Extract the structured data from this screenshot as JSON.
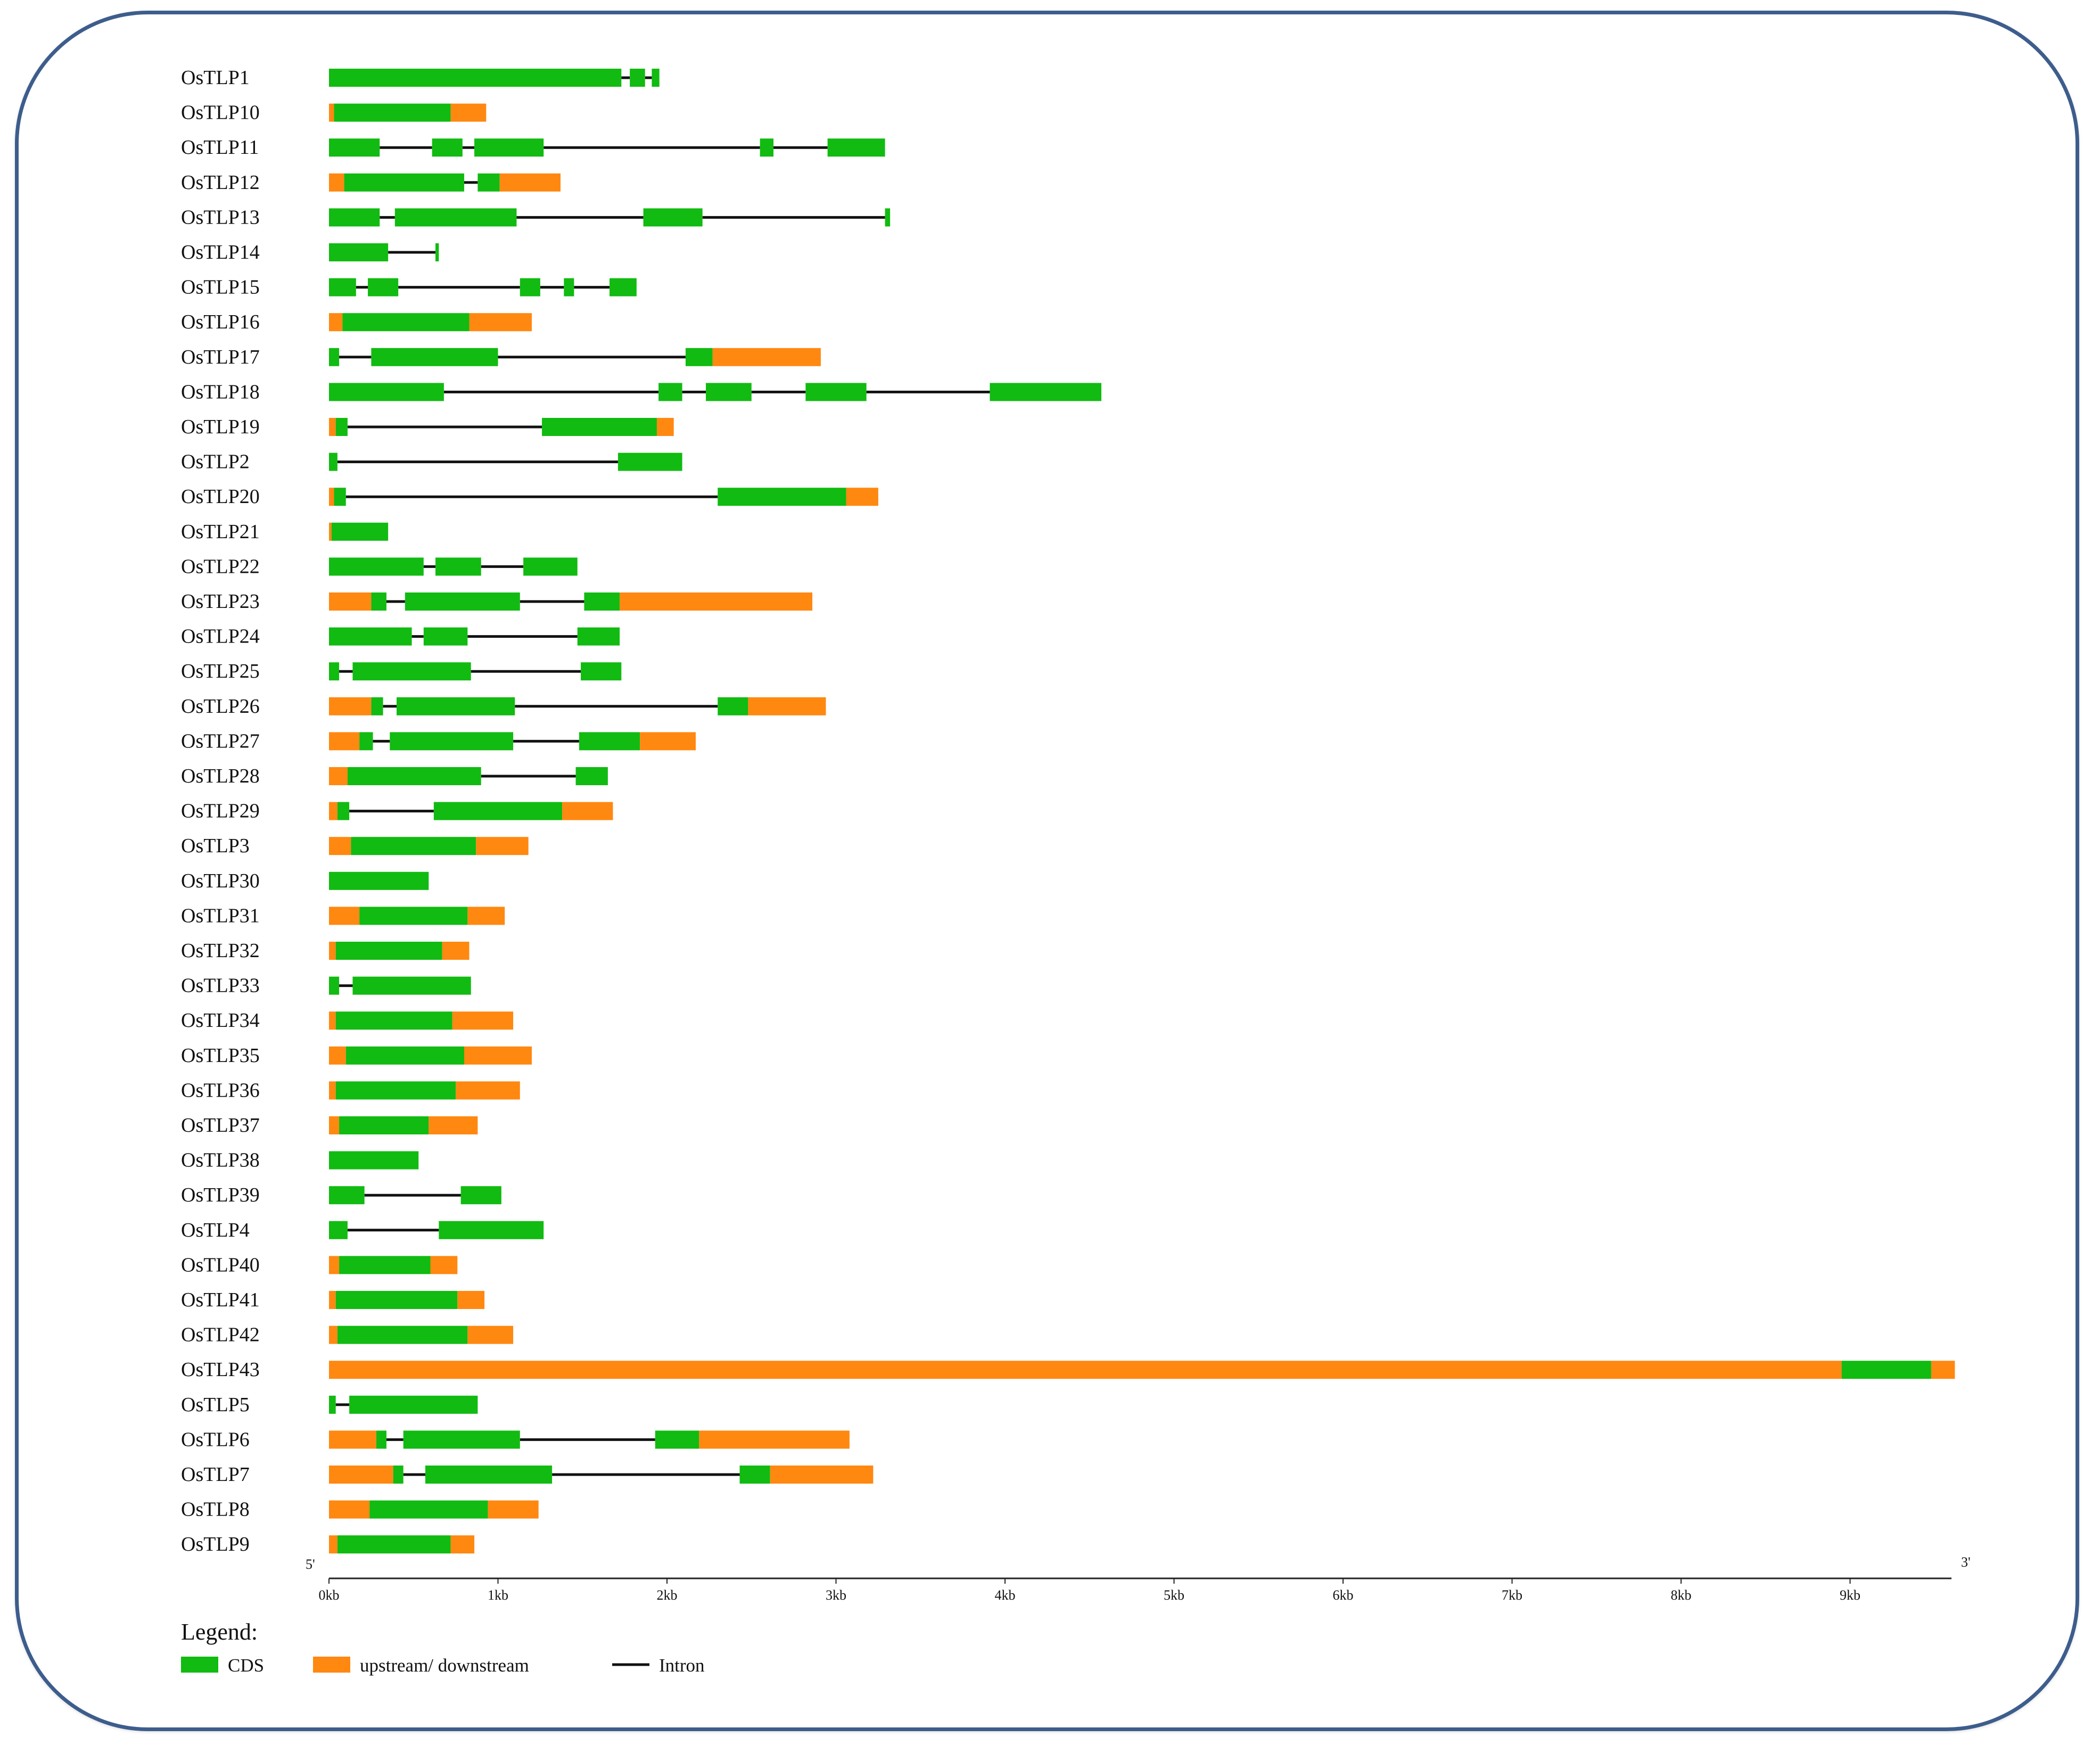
{
  "figure": {
    "title": "",
    "end_5_label": "5'",
    "end_3_label": "3'",
    "colors": {
      "cds": "#11bb11",
      "utr": "#ff8811",
      "intron": "#111111",
      "frame": "#3d5d8c"
    }
  },
  "chart_data": {
    "type": "gene-structure",
    "units": "bp",
    "x_range": [
      0,
      9600
    ],
    "axis": {
      "ticks": [
        {
          "value": 0,
          "label": "0kb"
        },
        {
          "value": 1000,
          "label": "1kb"
        },
        {
          "value": 2000,
          "label": "2kb"
        },
        {
          "value": 3000,
          "label": "3kb"
        },
        {
          "value": 4000,
          "label": "4kb"
        },
        {
          "value": 5000,
          "label": "5kb"
        },
        {
          "value": 6000,
          "label": "6kb"
        },
        {
          "value": 7000,
          "label": "7kb"
        },
        {
          "value": 8000,
          "label": "8kb"
        },
        {
          "value": 9000,
          "label": "9kb"
        }
      ]
    },
    "genes": [
      {
        "name": "OsTLP1",
        "features": [
          [
            "C",
            0,
            1730
          ],
          [
            "C",
            1780,
            1870
          ],
          [
            "C",
            1910,
            1955
          ]
        ]
      },
      {
        "name": "OsTLP10",
        "features": [
          [
            "U",
            0,
            30
          ],
          [
            "C",
            30,
            720
          ],
          [
            "U",
            720,
            930
          ]
        ]
      },
      {
        "name": "OsTLP11",
        "features": [
          [
            "C",
            0,
            300
          ],
          [
            "C",
            610,
            790
          ],
          [
            "C",
            860,
            1270
          ],
          [
            "C",
            2550,
            2630
          ],
          [
            "C",
            2950,
            3290
          ]
        ]
      },
      {
        "name": "OsTLP12",
        "features": [
          [
            "U",
            0,
            90
          ],
          [
            "C",
            90,
            800
          ],
          [
            "C",
            880,
            1010
          ],
          [
            "U",
            1010,
            1370
          ]
        ]
      },
      {
        "name": "OsTLP13",
        "features": [
          [
            "C",
            0,
            300
          ],
          [
            "C",
            390,
            1110
          ],
          [
            "C",
            1860,
            2210
          ],
          [
            "C",
            3290,
            3320
          ]
        ]
      },
      {
        "name": "OsTLP14",
        "features": [
          [
            "C",
            0,
            350
          ],
          [
            "C",
            630,
            650
          ]
        ]
      },
      {
        "name": "OsTLP15",
        "features": [
          [
            "C",
            0,
            160
          ],
          [
            "C",
            230,
            410
          ],
          [
            "C",
            1130,
            1250
          ],
          [
            "C",
            1390,
            1450
          ],
          [
            "C",
            1660,
            1820
          ]
        ]
      },
      {
        "name": "OsTLP16",
        "features": [
          [
            "U",
            0,
            80
          ],
          [
            "C",
            80,
            830
          ],
          [
            "U",
            830,
            1200
          ]
        ]
      },
      {
        "name": "OsTLP17",
        "features": [
          [
            "C",
            0,
            60
          ],
          [
            "C",
            250,
            1000
          ],
          [
            "C",
            2110,
            2270
          ],
          [
            "U",
            2270,
            2910
          ]
        ]
      },
      {
        "name": "OsTLP18",
        "features": [
          [
            "C",
            0,
            680
          ],
          [
            "C",
            1950,
            2090
          ],
          [
            "C",
            2230,
            2500
          ],
          [
            "C",
            2820,
            3180
          ],
          [
            "C",
            3910,
            4570
          ]
        ]
      },
      {
        "name": "OsTLP19",
        "features": [
          [
            "U",
            0,
            40
          ],
          [
            "C",
            40,
            110
          ],
          [
            "C",
            1260,
            1940
          ],
          [
            "U",
            1940,
            2040
          ]
        ]
      },
      {
        "name": "OsTLP2",
        "features": [
          [
            "C",
            0,
            50
          ],
          [
            "C",
            1710,
            2090
          ]
        ]
      },
      {
        "name": "OsTLP20",
        "features": [
          [
            "U",
            0,
            30
          ],
          [
            "C",
            30,
            100
          ],
          [
            "C",
            2300,
            3060
          ],
          [
            "U",
            3060,
            3250
          ]
        ]
      },
      {
        "name": "OsTLP21",
        "features": [
          [
            "U",
            0,
            15
          ],
          [
            "C",
            15,
            350
          ]
        ]
      },
      {
        "name": "OsTLP22",
        "features": [
          [
            "C",
            0,
            560
          ],
          [
            "C",
            630,
            900
          ],
          [
            "C",
            1150,
            1470
          ]
        ]
      },
      {
        "name": "OsTLP23",
        "features": [
          [
            "U",
            0,
            250
          ],
          [
            "C",
            250,
            340
          ],
          [
            "C",
            450,
            1130
          ],
          [
            "C",
            1510,
            1720
          ],
          [
            "U",
            1720,
            2860
          ]
        ]
      },
      {
        "name": "OsTLP24",
        "features": [
          [
            "C",
            0,
            490
          ],
          [
            "C",
            560,
            820
          ],
          [
            "C",
            1470,
            1720
          ]
        ]
      },
      {
        "name": "OsTLP25",
        "features": [
          [
            "C",
            0,
            60
          ],
          [
            "C",
            140,
            840
          ],
          [
            "C",
            1490,
            1730
          ]
        ]
      },
      {
        "name": "OsTLP26",
        "features": [
          [
            "U",
            0,
            250
          ],
          [
            "C",
            250,
            320
          ],
          [
            "C",
            400,
            1100
          ],
          [
            "C",
            2300,
            2480
          ],
          [
            "U",
            2480,
            2940
          ]
        ]
      },
      {
        "name": "OsTLP27",
        "features": [
          [
            "U",
            0,
            180
          ],
          [
            "C",
            180,
            260
          ],
          [
            "C",
            360,
            1090
          ],
          [
            "C",
            1480,
            1840
          ],
          [
            "U",
            1840,
            2170
          ]
        ]
      },
      {
        "name": "OsTLP28",
        "features": [
          [
            "U",
            0,
            110
          ],
          [
            "C",
            110,
            900
          ],
          [
            "C",
            1460,
            1650
          ]
        ]
      },
      {
        "name": "OsTLP29",
        "features": [
          [
            "U",
            0,
            50
          ],
          [
            "C",
            50,
            120
          ],
          [
            "C",
            620,
            1380
          ],
          [
            "U",
            1380,
            1680
          ]
        ]
      },
      {
        "name": "OsTLP3",
        "features": [
          [
            "U",
            0,
            130
          ],
          [
            "C",
            130,
            870
          ],
          [
            "U",
            870,
            1180
          ]
        ]
      },
      {
        "name": "OsTLP30",
        "features": [
          [
            "C",
            0,
            590
          ]
        ]
      },
      {
        "name": "OsTLP31",
        "features": [
          [
            "U",
            0,
            180
          ],
          [
            "C",
            180,
            820
          ],
          [
            "U",
            820,
            1040
          ]
        ]
      },
      {
        "name": "OsTLP32",
        "features": [
          [
            "U",
            0,
            40
          ],
          [
            "C",
            40,
            670
          ],
          [
            "U",
            670,
            830
          ]
        ]
      },
      {
        "name": "OsTLP33",
        "features": [
          [
            "C",
            0,
            60
          ],
          [
            "C",
            140,
            840
          ]
        ]
      },
      {
        "name": "OsTLP34",
        "features": [
          [
            "U",
            0,
            40
          ],
          [
            "C",
            40,
            730
          ],
          [
            "U",
            730,
            1090
          ]
        ]
      },
      {
        "name": "OsTLP35",
        "features": [
          [
            "U",
            0,
            100
          ],
          [
            "C",
            100,
            800
          ],
          [
            "U",
            800,
            1200
          ]
        ]
      },
      {
        "name": "OsTLP36",
        "features": [
          [
            "U",
            0,
            40
          ],
          [
            "C",
            40,
            750
          ],
          [
            "U",
            750,
            1130
          ]
        ]
      },
      {
        "name": "OsTLP37",
        "features": [
          [
            "U",
            0,
            60
          ],
          [
            "C",
            60,
            590
          ],
          [
            "U",
            590,
            880
          ]
        ]
      },
      {
        "name": "OsTLP38",
        "features": [
          [
            "C",
            0,
            530
          ]
        ]
      },
      {
        "name": "OsTLP39",
        "features": [
          [
            "C",
            0,
            210
          ],
          [
            "C",
            780,
            1020
          ]
        ]
      },
      {
        "name": "OsTLP4",
        "features": [
          [
            "C",
            0,
            110
          ],
          [
            "C",
            650,
            1270
          ]
        ]
      },
      {
        "name": "OsTLP40",
        "features": [
          [
            "U",
            0,
            60
          ],
          [
            "C",
            60,
            600
          ],
          [
            "U",
            600,
            760
          ]
        ]
      },
      {
        "name": "OsTLP41",
        "features": [
          [
            "U",
            0,
            40
          ],
          [
            "C",
            40,
            760
          ],
          [
            "U",
            760,
            920
          ]
        ]
      },
      {
        "name": "OsTLP42",
        "features": [
          [
            "U",
            0,
            50
          ],
          [
            "C",
            50,
            820
          ],
          [
            "U",
            820,
            1090
          ]
        ]
      },
      {
        "name": "OsTLP43",
        "features": [
          [
            "U",
            0,
            8950
          ],
          [
            "C",
            8950,
            9480
          ],
          [
            "U",
            9480,
            9620
          ]
        ]
      },
      {
        "name": "OsTLP5",
        "features": [
          [
            "C",
            0,
            40
          ],
          [
            "C",
            120,
            880
          ]
        ]
      },
      {
        "name": "OsTLP6",
        "features": [
          [
            "U",
            0,
            280
          ],
          [
            "C",
            280,
            340
          ],
          [
            "C",
            440,
            1130
          ],
          [
            "C",
            1930,
            2190
          ],
          [
            "U",
            2190,
            3080
          ]
        ]
      },
      {
        "name": "OsTLP7",
        "features": [
          [
            "U",
            0,
            380
          ],
          [
            "C",
            380,
            440
          ],
          [
            "C",
            570,
            1320
          ],
          [
            "C",
            2430,
            2610
          ],
          [
            "U",
            2610,
            3220
          ]
        ]
      },
      {
        "name": "OsTLP8",
        "features": [
          [
            "U",
            0,
            240
          ],
          [
            "C",
            240,
            940
          ],
          [
            "U",
            940,
            1240
          ]
        ]
      },
      {
        "name": "OsTLP9",
        "features": [
          [
            "U",
            0,
            50
          ],
          [
            "C",
            50,
            720
          ],
          [
            "U",
            720,
            860
          ]
        ]
      }
    ]
  },
  "legend": {
    "title": "Legend:",
    "items": [
      {
        "key": "cds",
        "label": "CDS"
      },
      {
        "key": "utr",
        "label": "upstream/ downstream"
      },
      {
        "key": "intron",
        "label": "Intron"
      }
    ]
  }
}
